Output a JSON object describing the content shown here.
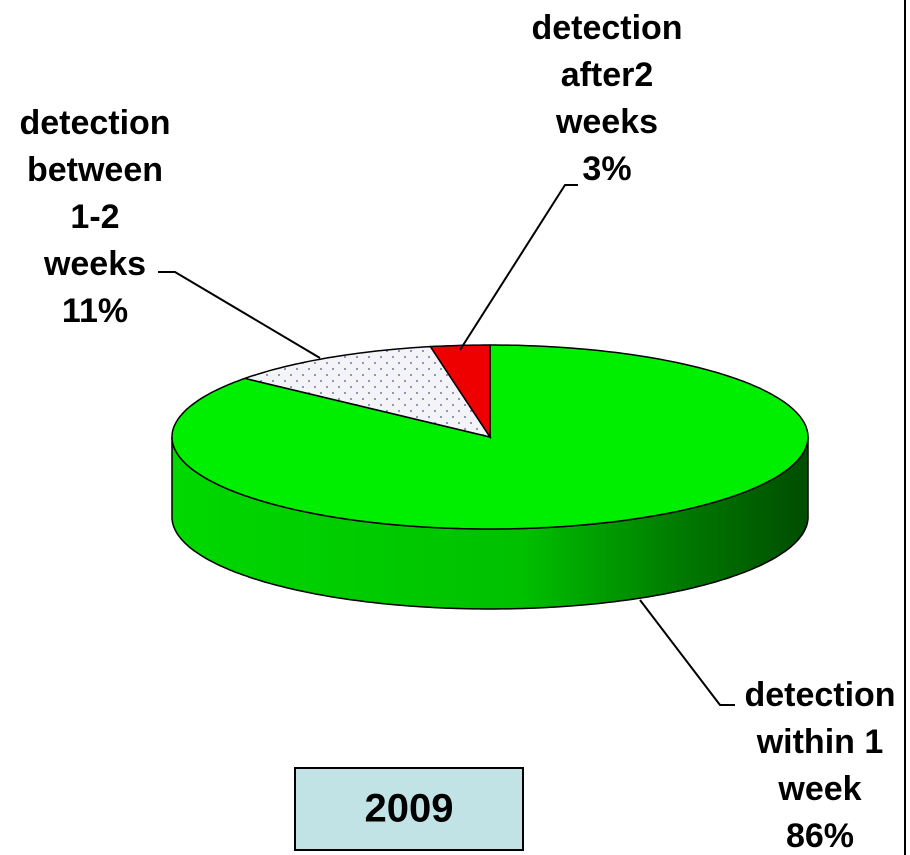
{
  "chart_data": {
    "type": "pie3d",
    "title": "2009",
    "categories": [
      "detection\nwithin 1\nweek",
      "detection\nbetween\n1-2\nweeks",
      "detection\nafter2\nweeks"
    ],
    "values": [
      86,
      11,
      3
    ],
    "value_labels": [
      "86%",
      "11%",
      "3%"
    ],
    "colors": [
      "#00ee00",
      "#f4f4f8",
      "#ee0000"
    ]
  }
}
